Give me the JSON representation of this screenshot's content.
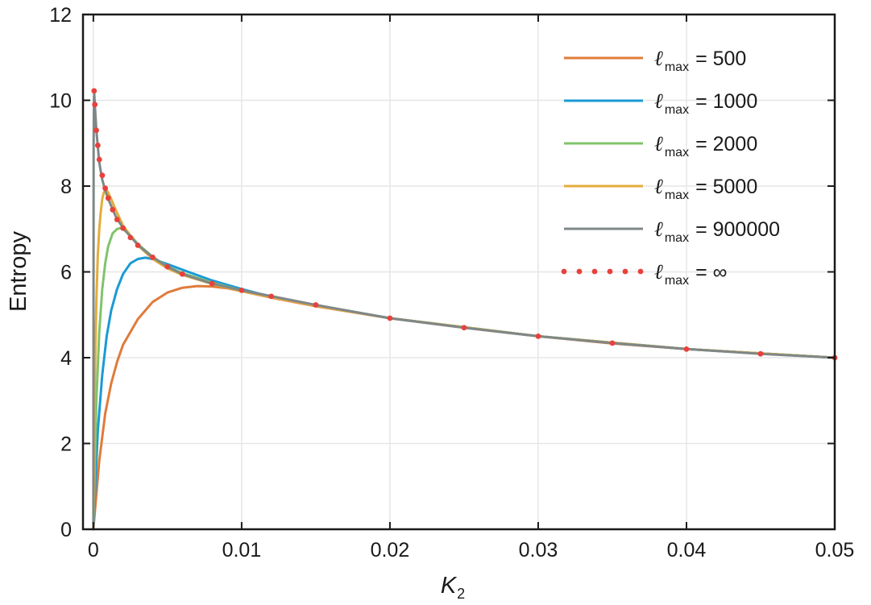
{
  "chart_data": {
    "type": "line",
    "xlabel": "K",
    "xlabel_sub": "2",
    "ylabel": "Entropy",
    "xlim": [
      -0.0007,
      0.05
    ],
    "ylim": [
      0,
      12
    ],
    "xticks": [
      0,
      0.01,
      0.02,
      0.03,
      0.04,
      0.05
    ],
    "xtick_labels": [
      "0",
      "0.01",
      "0.02",
      "0.03",
      "0.04",
      "0.05"
    ],
    "yticks": [
      0,
      2,
      4,
      6,
      8,
      10,
      12
    ],
    "ytick_labels": [
      "0",
      "2",
      "4",
      "6",
      "8",
      "10",
      "12"
    ],
    "grid": true,
    "legend_position": "top-right",
    "legend_symbol": "ℓ",
    "legend_subscript": "max",
    "series": [
      {
        "name": "= 500",
        "color": "#e07b39",
        "style": "solid",
        "x": [
          0,
          0.0004,
          0.0008,
          0.0012,
          0.0016,
          0.002,
          0.003,
          0.004,
          0.005,
          0.006,
          0.007,
          0.008,
          0.009,
          0.01,
          0.012,
          0.015,
          0.02,
          0.025,
          0.03,
          0.035,
          0.04,
          0.045,
          0.05
        ],
        "y": [
          0,
          1.6,
          2.7,
          3.4,
          3.9,
          4.3,
          4.9,
          5.3,
          5.52,
          5.63,
          5.67,
          5.66,
          5.62,
          5.55,
          5.4,
          5.2,
          4.92,
          4.7,
          4.5,
          4.33,
          4.2,
          4.1,
          4.0
        ]
      },
      {
        "name": "= 1000",
        "color": "#1a9ad6",
        "style": "solid",
        "x": [
          0,
          0.0003,
          0.0006,
          0.0009,
          0.0012,
          0.0016,
          0.002,
          0.0025,
          0.003,
          0.0035,
          0.004,
          0.005,
          0.006,
          0.008,
          0.01,
          0.012,
          0.015,
          0.02,
          0.03,
          0.04,
          0.05
        ],
        "y": [
          0,
          2.3,
          3.6,
          4.5,
          5.1,
          5.6,
          5.95,
          6.2,
          6.3,
          6.33,
          6.3,
          6.18,
          6.05,
          5.8,
          5.6,
          5.42,
          5.22,
          4.92,
          4.5,
          4.2,
          4.0
        ]
      },
      {
        "name": "= 2000",
        "color": "#7fc46b",
        "style": "solid",
        "x": [
          0,
          0.0002,
          0.0004,
          0.0006,
          0.0008,
          0.001,
          0.0013,
          0.0016,
          0.0018,
          0.002,
          0.0025,
          0.003,
          0.004,
          0.005,
          0.006,
          0.008,
          0.01,
          0.015,
          0.02,
          0.03,
          0.04,
          0.05
        ],
        "y": [
          0,
          3.0,
          4.6,
          5.6,
          6.2,
          6.6,
          6.9,
          7.0,
          7.02,
          7.0,
          6.85,
          6.65,
          6.35,
          6.13,
          5.97,
          5.75,
          5.57,
          5.22,
          4.92,
          4.5,
          4.2,
          4.0
        ]
      },
      {
        "name": "= 5000",
        "color": "#e3ad3b",
        "style": "solid",
        "x": [
          0,
          0.0001,
          0.0002,
          0.0003,
          0.0004,
          0.0005,
          0.0006,
          0.0007,
          0.0008,
          0.0009,
          0.001,
          0.0012,
          0.0015,
          0.002,
          0.003,
          0.004,
          0.005,
          0.006,
          0.008,
          0.01,
          0.015,
          0.02,
          0.03,
          0.04,
          0.05
        ],
        "y": [
          0,
          3.5,
          5.3,
          6.4,
          7.0,
          7.4,
          7.7,
          7.85,
          7.9,
          7.9,
          7.85,
          7.7,
          7.45,
          7.08,
          6.62,
          6.3,
          6.08,
          5.93,
          5.72,
          5.55,
          5.21,
          4.92,
          4.5,
          4.2,
          4.0
        ]
      },
      {
        "name": "= 900000",
        "color": "#7f8788",
        "style": "solid",
        "x": [
          0,
          2e-05,
          4e-05,
          6e-05,
          0.0001,
          0.0002,
          0.0004,
          0.0006,
          0.0008,
          0.001,
          0.0015,
          0.002,
          0.003,
          0.004,
          0.005,
          0.006,
          0.008,
          0.01,
          0.015,
          0.02,
          0.025,
          0.03,
          0.035,
          0.04,
          0.045,
          0.05
        ],
        "y": [
          0,
          9.0,
          10.05,
          10.15,
          9.9,
          9.3,
          8.55,
          8.15,
          7.9,
          7.7,
          7.3,
          7.02,
          6.63,
          6.34,
          6.12,
          5.95,
          5.73,
          5.57,
          5.23,
          4.92,
          4.7,
          4.5,
          4.34,
          4.2,
          4.09,
          4.0
        ]
      },
      {
        "name": "= ∞",
        "color": "#e8413c",
        "style": "dotted",
        "x": [
          5e-05,
          0.0001,
          0.0002,
          0.0003,
          0.0004,
          0.0006,
          0.0008,
          0.001,
          0.0013,
          0.0016,
          0.002,
          0.0025,
          0.003,
          0.004,
          0.005,
          0.006,
          0.008,
          0.01,
          0.012,
          0.015,
          0.02,
          0.025,
          0.03,
          0.035,
          0.04,
          0.045,
          0.05
        ],
        "y": [
          10.22,
          9.9,
          9.3,
          8.95,
          8.62,
          8.25,
          7.95,
          7.72,
          7.45,
          7.22,
          7.02,
          6.8,
          6.62,
          6.34,
          6.12,
          5.95,
          5.73,
          5.57,
          5.43,
          5.23,
          4.92,
          4.7,
          4.5,
          4.34,
          4.2,
          4.09,
          4.0
        ]
      }
    ]
  }
}
